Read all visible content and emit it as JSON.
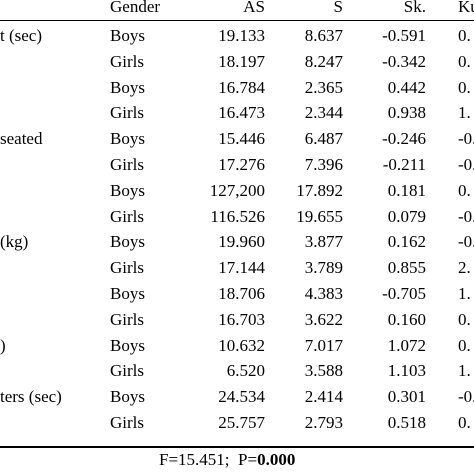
{
  "table": {
    "headers": {
      "gender": "Gender",
      "as": "AS",
      "s": "S",
      "sk": "Sk.",
      "ku": "Ku"
    },
    "rows": [
      {
        "label": "t (sec)",
        "gender": "Boys",
        "as": "19.133",
        "s": "8.637",
        "sk": "-0.591",
        "ku": "0."
      },
      {
        "label": "",
        "gender": "Girls",
        "as": "18.197",
        "s": "8.247",
        "sk": "-0.342",
        "ku": "0."
      },
      {
        "label": "",
        "gender": "Boys",
        "as": "16.784",
        "s": "2.365",
        "sk": "0.442",
        "ku": "0."
      },
      {
        "label": "",
        "gender": "Girls",
        "as": "16.473",
        "s": "2.344",
        "sk": "0.938",
        "ku": "1."
      },
      {
        "label": "seated",
        "gender": "Boys",
        "as": "15.446",
        "s": "6.487",
        "sk": "-0.246",
        "ku": "-0."
      },
      {
        "label": "",
        "gender": "Girls",
        "as": "17.276",
        "s": "7.396",
        "sk": "-0.211",
        "ku": "-0."
      },
      {
        "label": "",
        "gender": "Boys",
        "as": "127,200",
        "s": "17.892",
        "sk": "0.181",
        "ku": "0."
      },
      {
        "label": "",
        "gender": "Girls",
        "as": "116.526",
        "s": "19.655",
        "sk": "0.079",
        "ku": "-0."
      },
      {
        "label": "(kg)",
        "gender": "Boys",
        "as": "19.960",
        "s": "3.877",
        "sk": "0.162",
        "ku": "-0."
      },
      {
        "label": "",
        "gender": "Girls",
        "as": "17.144",
        "s": "3.789",
        "sk": "0.855",
        "ku": "2."
      },
      {
        "label": "",
        "gender": "Boys",
        "as": "18.706",
        "s": "4.383",
        "sk": "-0.705",
        "ku": "1."
      },
      {
        "label": "",
        "gender": "Girls",
        "as": "16.703",
        "s": "3.622",
        "sk": "0.160",
        "ku": "0."
      },
      {
        "label": ")",
        "gender": "Boys",
        "as": "10.632",
        "s": "7.017",
        "sk": "1.072",
        "ku": "0."
      },
      {
        "label": "",
        "gender": "Girls",
        "as": "6.520",
        "s": "3.588",
        "sk": "1.103",
        "ku": "1."
      },
      {
        "label": "ters (sec)",
        "gender": "Boys",
        "as": "24.534",
        "s": "2.414",
        "sk": "0.301",
        "ku": "-0."
      },
      {
        "label": "",
        "gender": "Girls",
        "as": "25.757",
        "s": "2.793",
        "sk": "0.518",
        "ku": "0."
      }
    ]
  },
  "footer": {
    "f_text": "F=15.451;",
    "p_label": "P=",
    "p_value": "0.000"
  }
}
